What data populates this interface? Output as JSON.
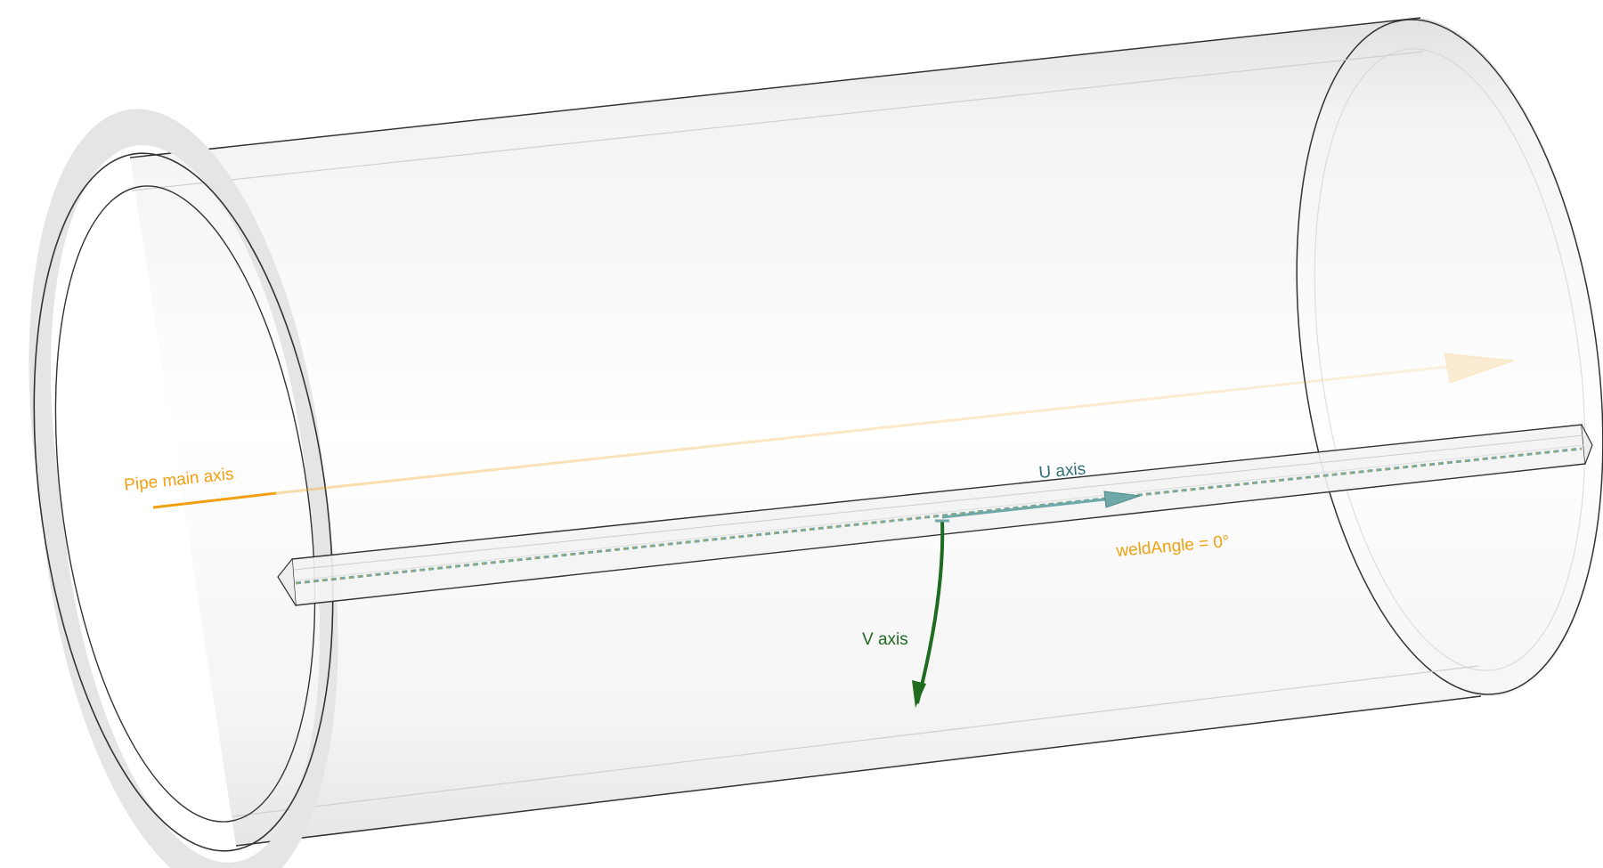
{
  "labels": {
    "pipe_axis": "Pipe main axis",
    "u_axis": "U axis",
    "v_axis": "V axis",
    "weld_angle": "weldAngle = 0°"
  },
  "colors": {
    "pipe_axis": "#F0A010",
    "u_axis": "#2F6F78",
    "v_axis": "#1F6B1F",
    "weld_angle": "#F0A010",
    "pipe_edge": "#333333",
    "pipe_fill": "#E9E9E9",
    "weld_seam": "#6FA8A8"
  }
}
